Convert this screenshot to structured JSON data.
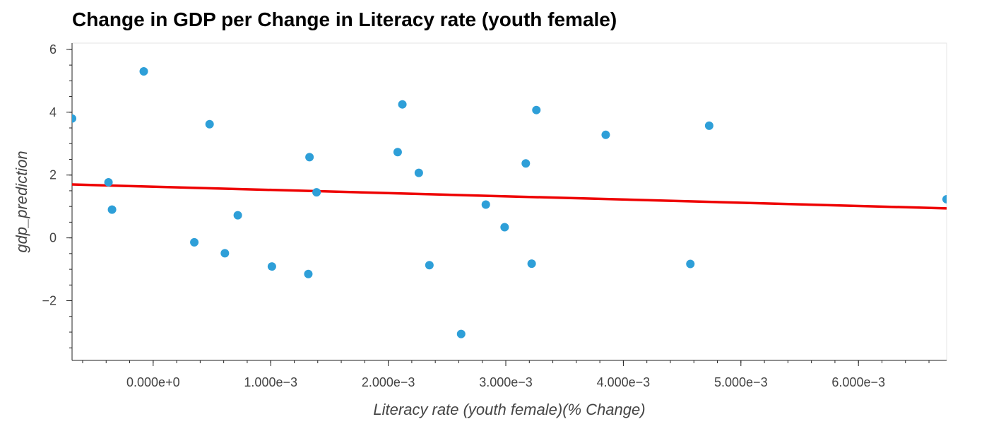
{
  "chart_data": {
    "type": "scatter",
    "title": "Change in GDP per Change in Literacy rate (youth female)",
    "xlabel": "Literacy rate (youth female)(% Change)",
    "ylabel": "gdp_prediction",
    "xlim": [
      -0.00069,
      0.00675
    ],
    "ylim": [
      -3.9,
      6.2
    ],
    "grid": false,
    "x_ticks": [
      0,
      0.001,
      0.002,
      0.003,
      0.004,
      0.005,
      0.006
    ],
    "x_tick_labels": [
      "0.000e+0",
      "1.000e−3",
      "2.000e−3",
      "3.000e−3",
      "4.000e−3",
      "5.000e−3",
      "6.000e−3"
    ],
    "y_ticks": [
      -2,
      0,
      2,
      4,
      6
    ],
    "y_tick_labels": [
      "−2",
      "0",
      "2",
      "4",
      "6"
    ],
    "point_color": "#2e9fd8",
    "line_color": "#ee0000",
    "points": [
      {
        "x": -0.00069,
        "y": 3.8
      },
      {
        "x": -0.00038,
        "y": 1.77
      },
      {
        "x": -0.00035,
        "y": 0.9
      },
      {
        "x": -8e-05,
        "y": 5.3
      },
      {
        "x": 0.00035,
        "y": -0.14
      },
      {
        "x": 0.00048,
        "y": 3.62
      },
      {
        "x": 0.00061,
        "y": -0.49
      },
      {
        "x": 0.00072,
        "y": 0.72
      },
      {
        "x": 0.00101,
        "y": -0.91
      },
      {
        "x": 0.00132,
        "y": -1.15
      },
      {
        "x": 0.00133,
        "y": 2.57
      },
      {
        "x": 0.00139,
        "y": 1.45
      },
      {
        "x": 0.00208,
        "y": 2.73
      },
      {
        "x": 0.00212,
        "y": 4.25
      },
      {
        "x": 0.00226,
        "y": 2.07
      },
      {
        "x": 0.00235,
        "y": -0.87
      },
      {
        "x": 0.00262,
        "y": -3.06
      },
      {
        "x": 0.00283,
        "y": 1.06
      },
      {
        "x": 0.00299,
        "y": 0.34
      },
      {
        "x": 0.00317,
        "y": 2.37
      },
      {
        "x": 0.00322,
        "y": -0.82
      },
      {
        "x": 0.00326,
        "y": 4.07
      },
      {
        "x": 0.00385,
        "y": 3.28
      },
      {
        "x": 0.00457,
        "y": -0.83
      },
      {
        "x": 0.00473,
        "y": 3.57
      },
      {
        "x": 0.00675,
        "y": 1.23
      }
    ],
    "trend_line": {
      "x": [
        -0.00069,
        0.00675
      ],
      "y": [
        1.7,
        0.94
      ]
    }
  }
}
